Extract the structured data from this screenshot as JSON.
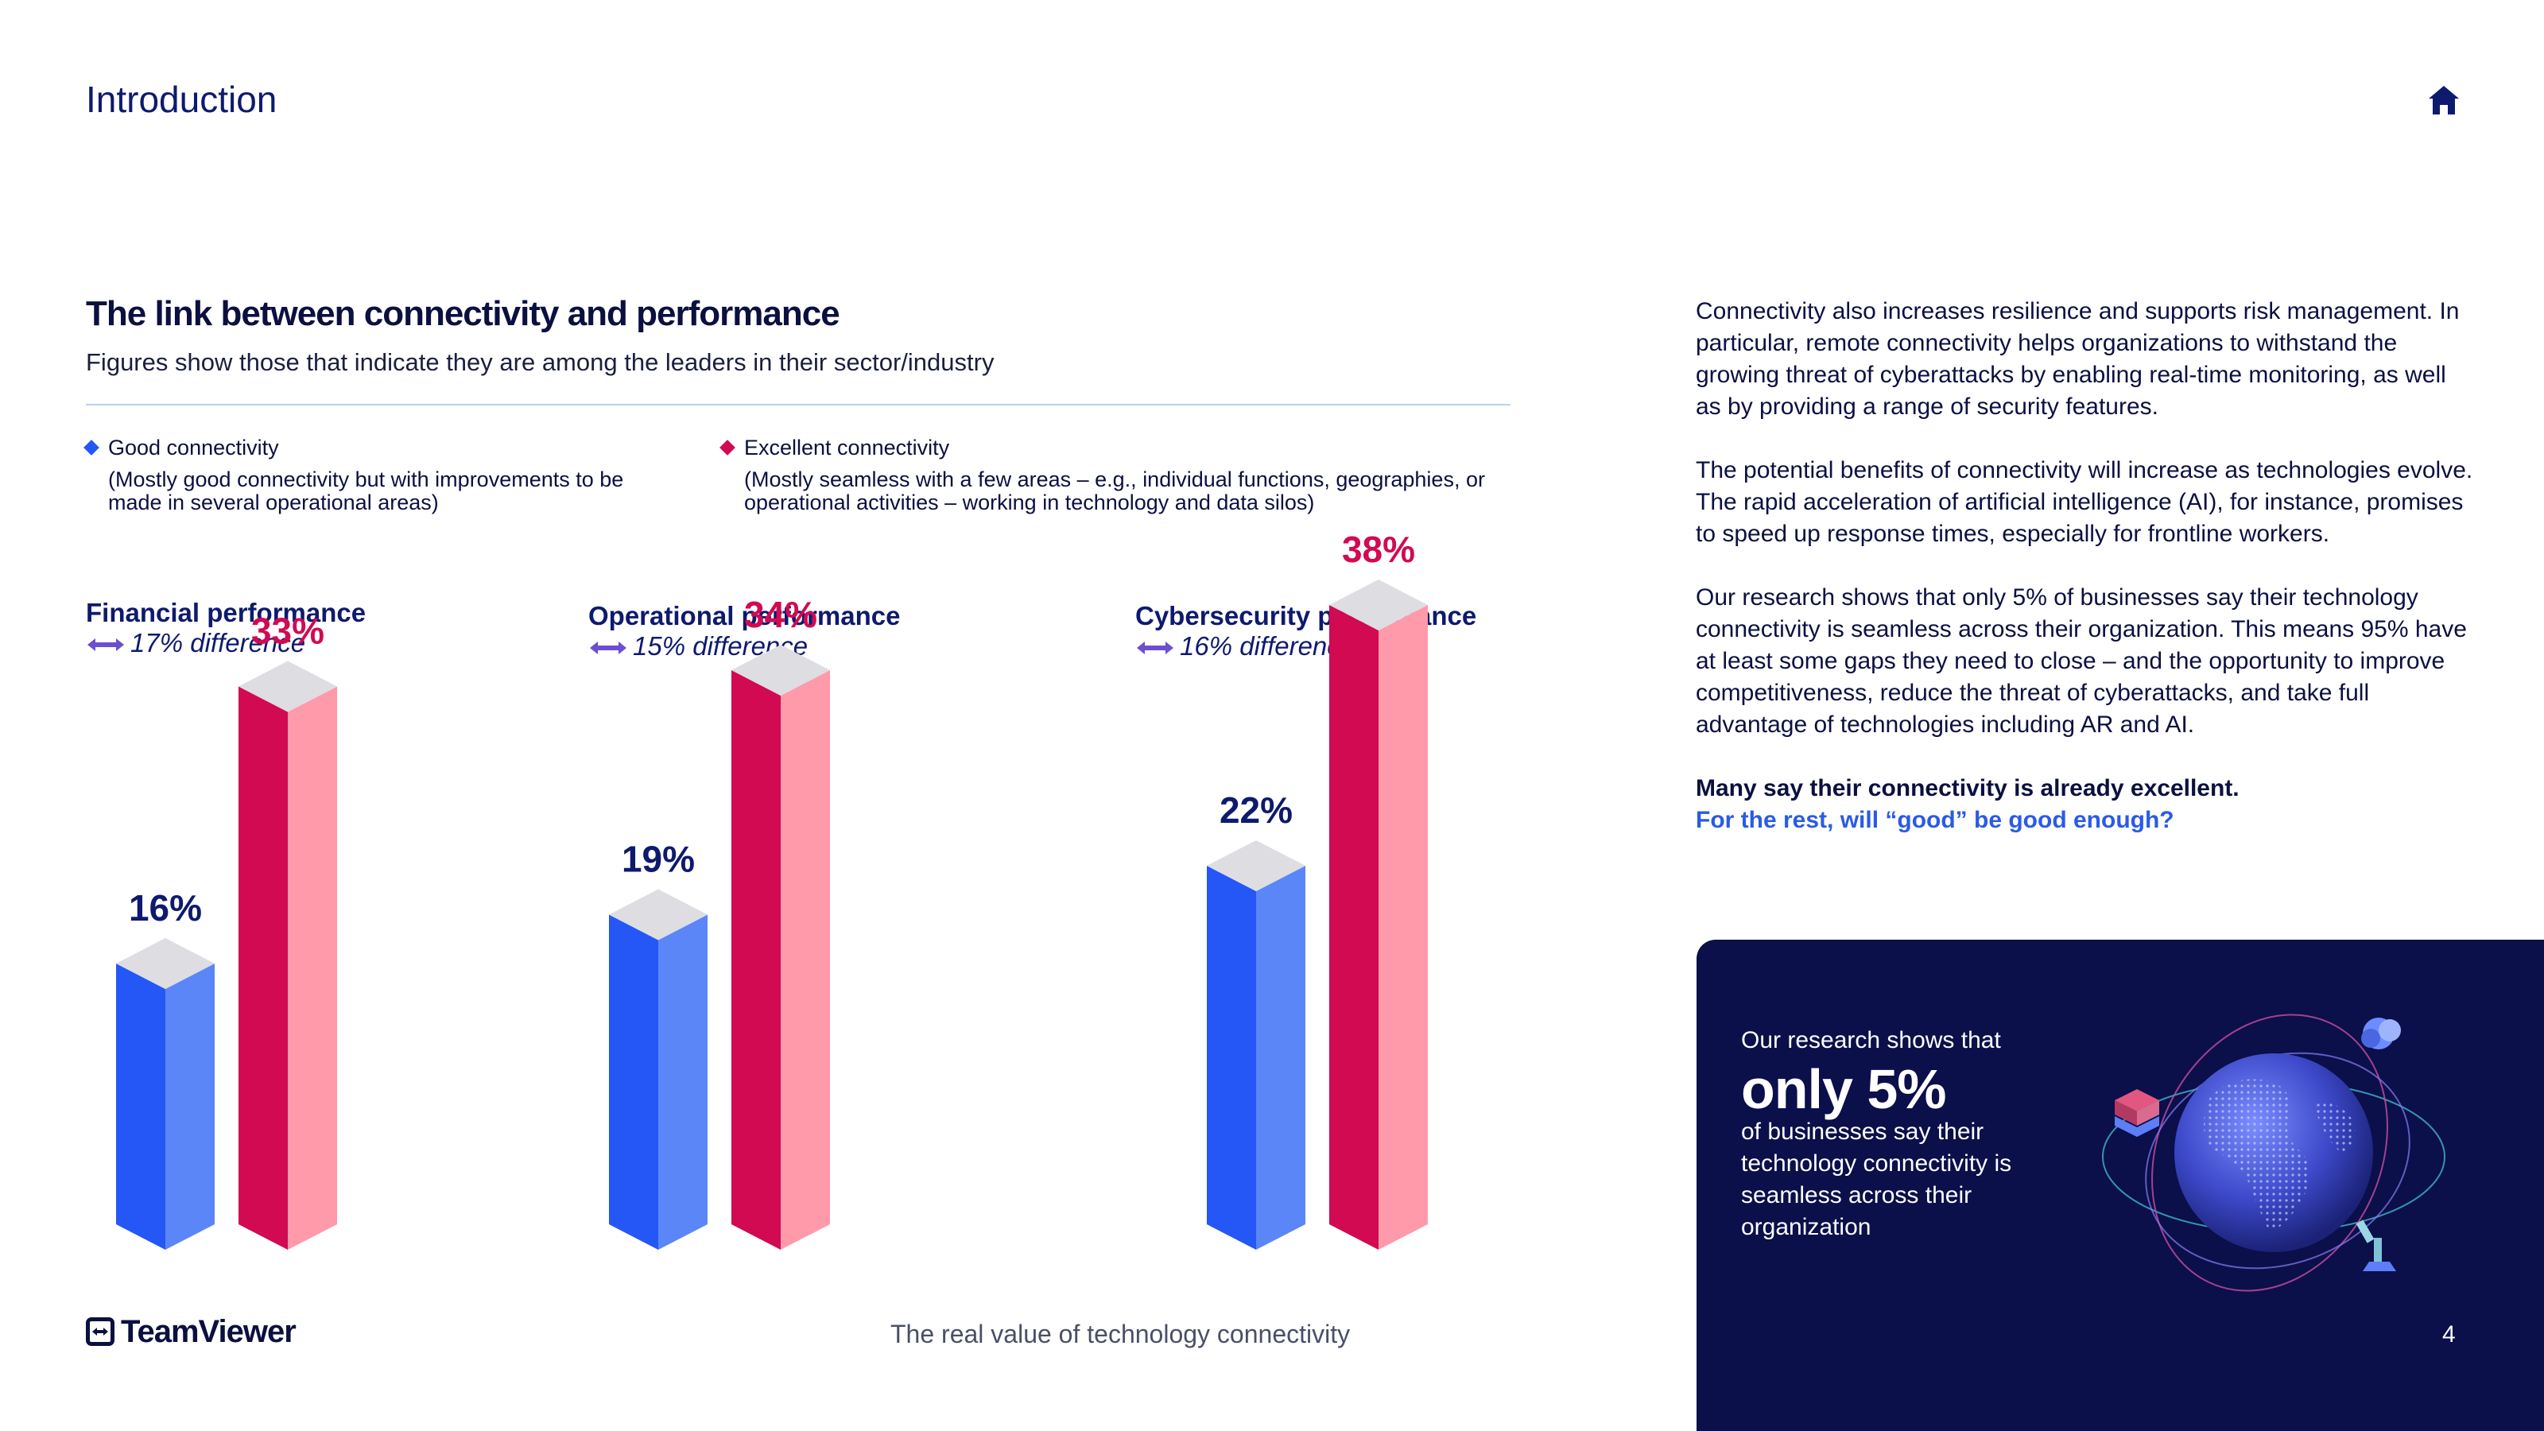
{
  "header": {
    "section_title": "Introduction",
    "home_icon": "home-icon"
  },
  "colors": {
    "navy": "#0b0f4a",
    "good_front": "#2457f5",
    "good_side": "#5b86f7",
    "excellent_front": "#d10a52",
    "excellent_side": "#ff9aaa",
    "bar_top": "#dddde2",
    "good_label": "#0e1a6e",
    "excellent_label": "#d10a52",
    "accent_blue": "#2a5be6"
  },
  "chart_data": {
    "type": "bar",
    "title": "The link between connectivity and performance",
    "subtitle": "Figures show those that indicate they are among the leaders in their sector/industry",
    "legend": [
      {
        "name": "Good connectivity",
        "description": "(Mostly good connectivity but with improvements to be made in several operational areas)"
      },
      {
        "name": "Excellent connectivity",
        "description": "(Mostly seamless with a few areas – e.g., individual functions, geographies, or operational activities – working in technology and data silos)"
      }
    ],
    "categories": [
      "Financial performance",
      "Operational performance",
      "Cybersecurity performance"
    ],
    "differences": [
      "17% difference",
      "15% difference",
      "16% difference"
    ],
    "series": [
      {
        "name": "Good connectivity",
        "values": [
          16,
          19,
          22
        ],
        "labels": [
          "16%",
          "19%",
          "22%"
        ]
      },
      {
        "name": "Excellent connectivity",
        "values": [
          33,
          34,
          38
        ],
        "labels": [
          "33%",
          "34%",
          "38%"
        ]
      }
    ],
    "ylim": [
      0,
      40
    ],
    "grid": false,
    "legend_placement": "top"
  },
  "body": {
    "paragraphs": [
      "Connectivity also increases resilience and supports risk management. In particular, remote connectivity helps organizations to withstand the growing threat of cyberattacks by enabling real-time monitoring, as well as by providing a range of security features.",
      "The potential benefits of connectivity will increase as technologies evolve. The rapid acceleration of artificial intelligence (AI), for instance, promises to speed up response times, especially for frontline workers.",
      "Our research shows that only 5% of businesses say their technology connectivity is seamless across their organization. This means 95% have at least some gaps they need to close – and the opportunity to improve competitiveness, reduce the threat of cyberattacks, and take full advantage of technologies including AR and AI."
    ],
    "bold_line": "Many say their connectivity is already excellent.",
    "blue_line": "For the rest, will “good” be good enough?"
  },
  "stat_card": {
    "intro": "Our research shows that",
    "value": "only 5%",
    "detail": "of businesses say their technology connectivity is seamless across their organization",
    "illustration": "globe-icon"
  },
  "footer": {
    "brand": "TeamViewer",
    "title": "The real value of technology connectivity",
    "page_number": "4"
  }
}
